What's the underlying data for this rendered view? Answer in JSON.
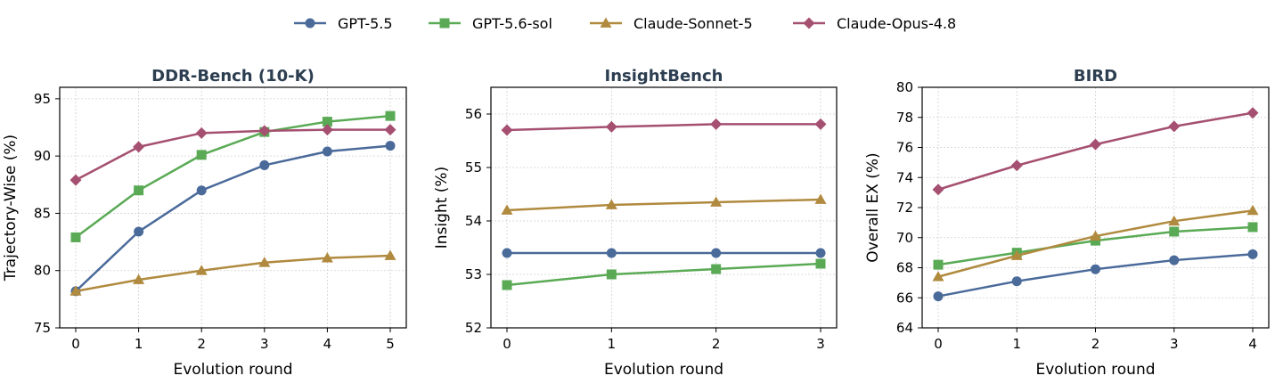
{
  "legend": {
    "placement": "top-center",
    "entries": [
      "GPT-5.5",
      "GPT-5.6-sol",
      "Claude-Sonnet-5",
      "Claude-Opus-4.8"
    ]
  },
  "series_styles": [
    {
      "name": "GPT-5.5",
      "color": "#4a6a9a",
      "marker": "circle"
    },
    {
      "name": "GPT-5.6-sol",
      "color": "#5aaa55",
      "marker": "square"
    },
    {
      "name": "Claude-Sonnet-5",
      "color": "#b08a3e",
      "marker": "triangle"
    },
    {
      "name": "Claude-Opus-4.8",
      "color": "#a55070",
      "marker": "diamond"
    }
  ],
  "chart_data": [
    {
      "type": "line",
      "title": "DDR-Bench (10-K)",
      "xlabel": "Evolution round",
      "ylabel": "Trajectory-Wise (%)",
      "x": [
        0,
        1,
        2,
        3,
        4,
        5
      ],
      "xticks": [
        "0",
        "1",
        "2",
        "3",
        "4",
        "5"
      ],
      "ylim": [
        75,
        96
      ],
      "yticks": [
        75,
        80,
        85,
        90,
        95
      ],
      "grid": true,
      "series": [
        {
          "name": "GPT-5.5",
          "values": [
            78.2,
            83.4,
            87.0,
            89.2,
            90.4,
            90.9
          ]
        },
        {
          "name": "GPT-5.6-sol",
          "values": [
            82.9,
            87.0,
            90.1,
            92.1,
            93.0,
            93.5
          ]
        },
        {
          "name": "Claude-Sonnet-5",
          "values": [
            78.2,
            79.2,
            80.0,
            80.7,
            81.1,
            81.3
          ]
        },
        {
          "name": "Claude-Opus-4.8",
          "values": [
            87.9,
            90.8,
            92.0,
            92.2,
            92.3,
            92.3
          ]
        }
      ]
    },
    {
      "type": "line",
      "title": "InsightBench",
      "xlabel": "Evolution round",
      "ylabel": "Insight (%)",
      "x": [
        0,
        1,
        2,
        3
      ],
      "xticks": [
        "0",
        "1",
        "2",
        "3"
      ],
      "ylim": [
        52,
        56.5
      ],
      "yticks": [
        52,
        53,
        54,
        55,
        56
      ],
      "grid": true,
      "series": [
        {
          "name": "GPT-5.5",
          "values": [
            53.4,
            53.4,
            53.4,
            53.4
          ]
        },
        {
          "name": "GPT-5.6-sol",
          "values": [
            52.8,
            53.0,
            53.1,
            53.2
          ]
        },
        {
          "name": "Claude-Sonnet-5",
          "values": [
            54.2,
            54.3,
            54.35,
            54.4
          ]
        },
        {
          "name": "Claude-Opus-4.8",
          "values": [
            55.7,
            55.76,
            55.81,
            55.81
          ]
        }
      ]
    },
    {
      "type": "line",
      "title": "BIRD",
      "xlabel": "Evolution round",
      "ylabel": "Overall EX (%)",
      "x": [
        0,
        1,
        2,
        3,
        4
      ],
      "xticks": [
        "0",
        "1",
        "2",
        "3",
        "4"
      ],
      "ylim": [
        64,
        80
      ],
      "yticks": [
        64,
        66,
        68,
        70,
        72,
        74,
        76,
        78,
        80
      ],
      "grid": true,
      "series": [
        {
          "name": "GPT-5.5",
          "values": [
            66.1,
            67.1,
            67.9,
            68.5,
            68.9
          ]
        },
        {
          "name": "GPT-5.6-sol",
          "values": [
            68.2,
            69.0,
            69.8,
            70.4,
            70.7
          ]
        },
        {
          "name": "Claude-Sonnet-5",
          "values": [
            67.4,
            68.8,
            70.1,
            71.1,
            71.8
          ]
        },
        {
          "name": "Claude-Opus-4.8",
          "values": [
            73.2,
            74.8,
            76.2,
            77.4,
            78.3
          ]
        }
      ]
    }
  ]
}
